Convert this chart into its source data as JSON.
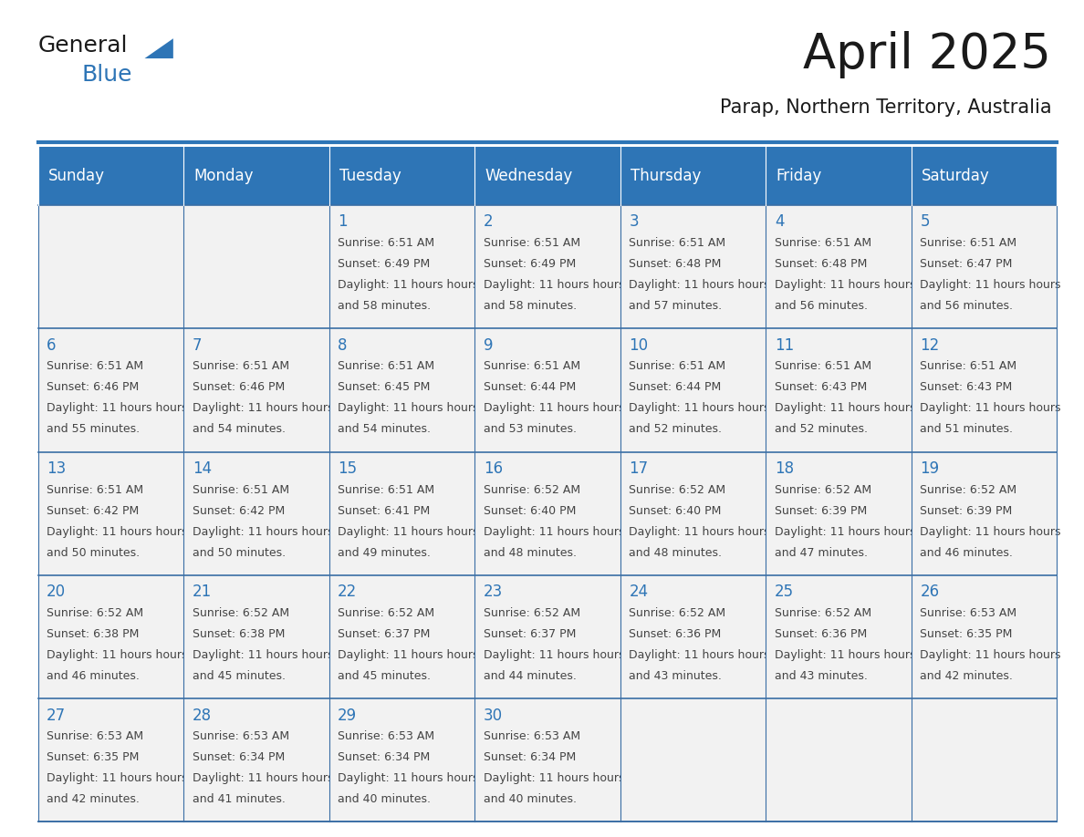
{
  "title": "April 2025",
  "subtitle": "Parap, Northern Territory, Australia",
  "header_color": "#2E75B6",
  "header_text_color": "#FFFFFF",
  "cell_bg_color_light": "#F2F2F2",
  "cell_bg_color_white": "#FFFFFF",
  "cell_border_color": "#3A6EA5",
  "day_number_color": "#2E75B6",
  "cell_text_color": "#444444",
  "background_color": "#FFFFFF",
  "days_of_week": [
    "Sunday",
    "Monday",
    "Tuesday",
    "Wednesday",
    "Thursday",
    "Friday",
    "Saturday"
  ],
  "calendar_data": [
    [
      {
        "day": "",
        "sunrise": "",
        "sunset": "",
        "daylight": ""
      },
      {
        "day": "",
        "sunrise": "",
        "sunset": "",
        "daylight": ""
      },
      {
        "day": "1",
        "sunrise": "6:51 AM",
        "sunset": "6:49 PM",
        "daylight": "11 hours and 58 minutes."
      },
      {
        "day": "2",
        "sunrise": "6:51 AM",
        "sunset": "6:49 PM",
        "daylight": "11 hours and 58 minutes."
      },
      {
        "day": "3",
        "sunrise": "6:51 AM",
        "sunset": "6:48 PM",
        "daylight": "11 hours and 57 minutes."
      },
      {
        "day": "4",
        "sunrise": "6:51 AM",
        "sunset": "6:48 PM",
        "daylight": "11 hours and 56 minutes."
      },
      {
        "day": "5",
        "sunrise": "6:51 AM",
        "sunset": "6:47 PM",
        "daylight": "11 hours and 56 minutes."
      }
    ],
    [
      {
        "day": "6",
        "sunrise": "6:51 AM",
        "sunset": "6:46 PM",
        "daylight": "11 hours and 55 minutes."
      },
      {
        "day": "7",
        "sunrise": "6:51 AM",
        "sunset": "6:46 PM",
        "daylight": "11 hours and 54 minutes."
      },
      {
        "day": "8",
        "sunrise": "6:51 AM",
        "sunset": "6:45 PM",
        "daylight": "11 hours and 54 minutes."
      },
      {
        "day": "9",
        "sunrise": "6:51 AM",
        "sunset": "6:44 PM",
        "daylight": "11 hours and 53 minutes."
      },
      {
        "day": "10",
        "sunrise": "6:51 AM",
        "sunset": "6:44 PM",
        "daylight": "11 hours and 52 minutes."
      },
      {
        "day": "11",
        "sunrise": "6:51 AM",
        "sunset": "6:43 PM",
        "daylight": "11 hours and 52 minutes."
      },
      {
        "day": "12",
        "sunrise": "6:51 AM",
        "sunset": "6:43 PM",
        "daylight": "11 hours and 51 minutes."
      }
    ],
    [
      {
        "day": "13",
        "sunrise": "6:51 AM",
        "sunset": "6:42 PM",
        "daylight": "11 hours and 50 minutes."
      },
      {
        "day": "14",
        "sunrise": "6:51 AM",
        "sunset": "6:42 PM",
        "daylight": "11 hours and 50 minutes."
      },
      {
        "day": "15",
        "sunrise": "6:51 AM",
        "sunset": "6:41 PM",
        "daylight": "11 hours and 49 minutes."
      },
      {
        "day": "16",
        "sunrise": "6:52 AM",
        "sunset": "6:40 PM",
        "daylight": "11 hours and 48 minutes."
      },
      {
        "day": "17",
        "sunrise": "6:52 AM",
        "sunset": "6:40 PM",
        "daylight": "11 hours and 48 minutes."
      },
      {
        "day": "18",
        "sunrise": "6:52 AM",
        "sunset": "6:39 PM",
        "daylight": "11 hours and 47 minutes."
      },
      {
        "day": "19",
        "sunrise": "6:52 AM",
        "sunset": "6:39 PM",
        "daylight": "11 hours and 46 minutes."
      }
    ],
    [
      {
        "day": "20",
        "sunrise": "6:52 AM",
        "sunset": "6:38 PM",
        "daylight": "11 hours and 46 minutes."
      },
      {
        "day": "21",
        "sunrise": "6:52 AM",
        "sunset": "6:38 PM",
        "daylight": "11 hours and 45 minutes."
      },
      {
        "day": "22",
        "sunrise": "6:52 AM",
        "sunset": "6:37 PM",
        "daylight": "11 hours and 45 minutes."
      },
      {
        "day": "23",
        "sunrise": "6:52 AM",
        "sunset": "6:37 PM",
        "daylight": "11 hours and 44 minutes."
      },
      {
        "day": "24",
        "sunrise": "6:52 AM",
        "sunset": "6:36 PM",
        "daylight": "11 hours and 43 minutes."
      },
      {
        "day": "25",
        "sunrise": "6:52 AM",
        "sunset": "6:36 PM",
        "daylight": "11 hours and 43 minutes."
      },
      {
        "day": "26",
        "sunrise": "6:53 AM",
        "sunset": "6:35 PM",
        "daylight": "11 hours and 42 minutes."
      }
    ],
    [
      {
        "day": "27",
        "sunrise": "6:53 AM",
        "sunset": "6:35 PM",
        "daylight": "11 hours and 42 minutes."
      },
      {
        "day": "28",
        "sunrise": "6:53 AM",
        "sunset": "6:34 PM",
        "daylight": "11 hours and 41 minutes."
      },
      {
        "day": "29",
        "sunrise": "6:53 AM",
        "sunset": "6:34 PM",
        "daylight": "11 hours and 40 minutes."
      },
      {
        "day": "30",
        "sunrise": "6:53 AM",
        "sunset": "6:34 PM",
        "daylight": "11 hours and 40 minutes."
      },
      {
        "day": "",
        "sunrise": "",
        "sunset": "",
        "daylight": ""
      },
      {
        "day": "",
        "sunrise": "",
        "sunset": "",
        "daylight": ""
      },
      {
        "day": "",
        "sunrise": "",
        "sunset": "",
        "daylight": ""
      }
    ]
  ],
  "logo_text_general": "General",
  "logo_text_blue": "Blue",
  "logo_color_general": "#1a1a1a",
  "logo_color_blue": "#2E75B6",
  "title_fontsize": 38,
  "subtitle_fontsize": 15,
  "day_header_fontsize": 12,
  "day_number_fontsize": 12,
  "cell_text_fontsize": 9,
  "logo_fontsize": 18
}
